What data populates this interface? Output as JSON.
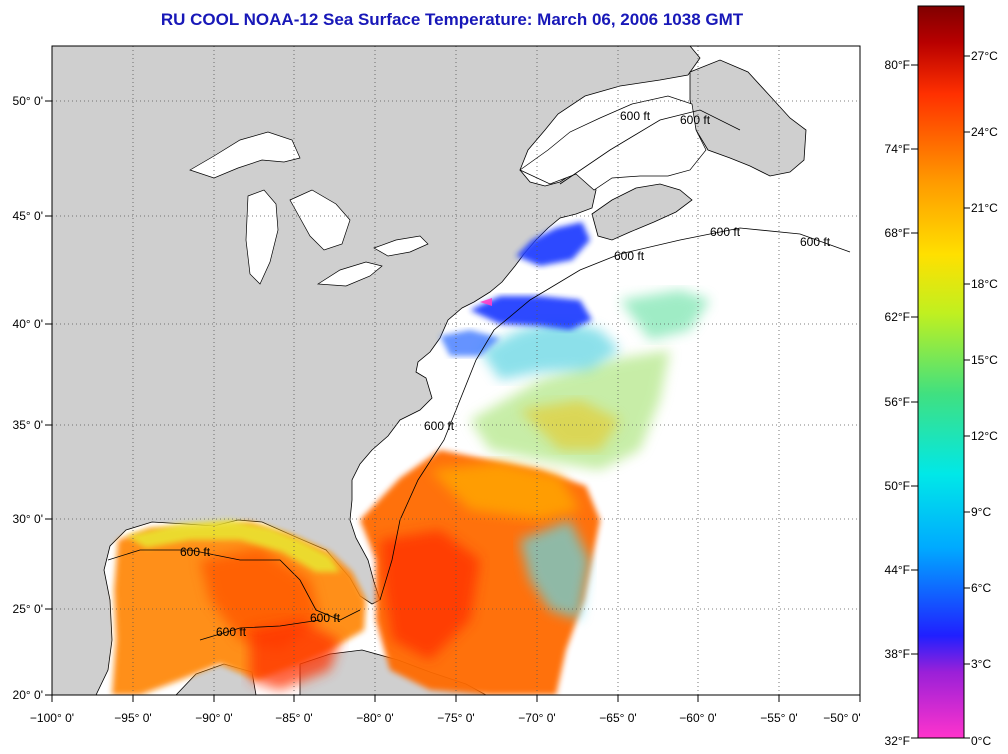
{
  "title": "RU COOL  NOAA-12  Sea Surface Temperature:  March 06, 2006 1038 GMT",
  "map": {
    "lon_range": [
      -100,
      -50
    ],
    "lat_range": [
      20,
      52.5
    ],
    "grid": true,
    "lon_ticks": [
      "−100° 0'",
      "−95° 0'",
      "−90° 0'",
      "−85° 0'",
      "−80° 0'",
      "−75° 0'",
      "−70° 0'",
      "−65° 0'",
      "−60° 0'",
      "−55° 0'",
      "−50° 0'"
    ],
    "lat_ticks": [
      "20° 0'",
      "25° 0'",
      "30° 0'",
      "35° 0'",
      "40° 0'",
      "45° 0'",
      "50° 0'"
    ],
    "contour_label": "600 ft",
    "land_color": "#cfcfcf",
    "ocean_no_data_color": "#ffffff"
  },
  "colorbar": {
    "fahrenheit_labels": [
      "80°F",
      "74°F",
      "68°F",
      "62°F",
      "56°F",
      "50°F",
      "44°F",
      "38°F",
      "32°F"
    ],
    "celsius_labels": [
      "27°C",
      "24°C",
      "21°C",
      "18°C",
      "15°C",
      "12°C",
      "9°C",
      "6°C",
      "3°C",
      "0°C"
    ],
    "colors": [
      "#ff33cc",
      "#9a20d8",
      "#2020ff",
      "#00aaff",
      "#00e8e8",
      "#40e080",
      "#c0f020",
      "#ffe000",
      "#ff9a00",
      "#ff3000",
      "#b80000",
      "#800000"
    ]
  }
}
